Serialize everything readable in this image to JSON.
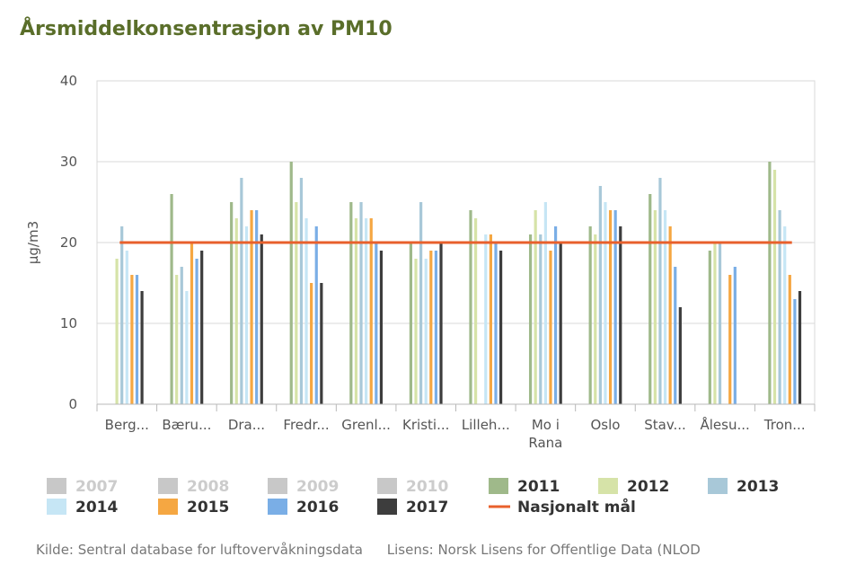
{
  "chart_data": {
    "type": "bar",
    "title": "Årsmiddelkonsentrasjon av PM10",
    "xlabel": "",
    "ylabel": "µg/m3",
    "ylim": [
      0,
      40
    ],
    "yticks": [
      0,
      10,
      20,
      30,
      40
    ],
    "grid": true,
    "legend_position": "bottom",
    "categories": [
      "Berg...",
      "Bæru...",
      "Dra...",
      "Fredr...",
      "Grenl...",
      "Kristi...",
      "Lilleh...",
      "Mo i Rana",
      "Oslo",
      "Stav...",
      "Ålesu...",
      "Tron..."
    ],
    "series": [
      {
        "name": "2007",
        "color": "#c8c8c8",
        "disabled": true,
        "values": [
          null,
          null,
          null,
          null,
          null,
          null,
          null,
          null,
          null,
          null,
          null,
          null
        ]
      },
      {
        "name": "2008",
        "color": "#c8c8c8",
        "disabled": true,
        "values": [
          null,
          null,
          null,
          null,
          null,
          null,
          null,
          null,
          null,
          null,
          null,
          null
        ]
      },
      {
        "name": "2009",
        "color": "#c8c8c8",
        "disabled": true,
        "values": [
          null,
          null,
          null,
          null,
          null,
          null,
          null,
          null,
          null,
          null,
          null,
          null
        ]
      },
      {
        "name": "2010",
        "color": "#c8c8c8",
        "disabled": true,
        "values": [
          null,
          null,
          null,
          null,
          null,
          null,
          null,
          null,
          null,
          null,
          null,
          null
        ]
      },
      {
        "name": "2011",
        "color": "#9fb98a",
        "disabled": false,
        "values": [
          null,
          26,
          25,
          30,
          25,
          20,
          24,
          21,
          22,
          26,
          19,
          30
        ]
      },
      {
        "name": "2012",
        "color": "#d6e3a8",
        "disabled": false,
        "values": [
          18,
          16,
          23,
          25,
          23,
          18,
          23,
          24,
          21,
          24,
          20,
          29
        ]
      },
      {
        "name": "2013",
        "color": "#a8c8d8",
        "disabled": false,
        "values": [
          22,
          17,
          28,
          28,
          25,
          25,
          null,
          21,
          27,
          28,
          20,
          24
        ]
      },
      {
        "name": "2014",
        "color": "#c6e6f5",
        "disabled": false,
        "values": [
          19,
          14,
          22,
          23,
          23,
          18,
          21,
          25,
          25,
          24,
          null,
          22
        ]
      },
      {
        "name": "2015",
        "color": "#f5a742",
        "disabled": false,
        "values": [
          16,
          20,
          24,
          15,
          23,
          19,
          21,
          19,
          24,
          22,
          16,
          16
        ]
      },
      {
        "name": "2016",
        "color": "#7aaee6",
        "disabled": false,
        "values": [
          16,
          18,
          24,
          22,
          20,
          19,
          20,
          22,
          24,
          17,
          17,
          13
        ]
      },
      {
        "name": "2017",
        "color": "#3d3d3d",
        "disabled": false,
        "values": [
          14,
          19,
          21,
          15,
          19,
          20,
          19,
          20,
          22,
          12,
          null,
          14
        ]
      }
    ],
    "target_line": {
      "name": "Nasjonalt mål",
      "value": 20,
      "color": "#e8602c"
    }
  },
  "footer": {
    "source": "Kilde: Sentral database for luftovervåkningsdata",
    "license": "Lisens: Norsk Lisens for Offentlige Data (NLOD"
  }
}
